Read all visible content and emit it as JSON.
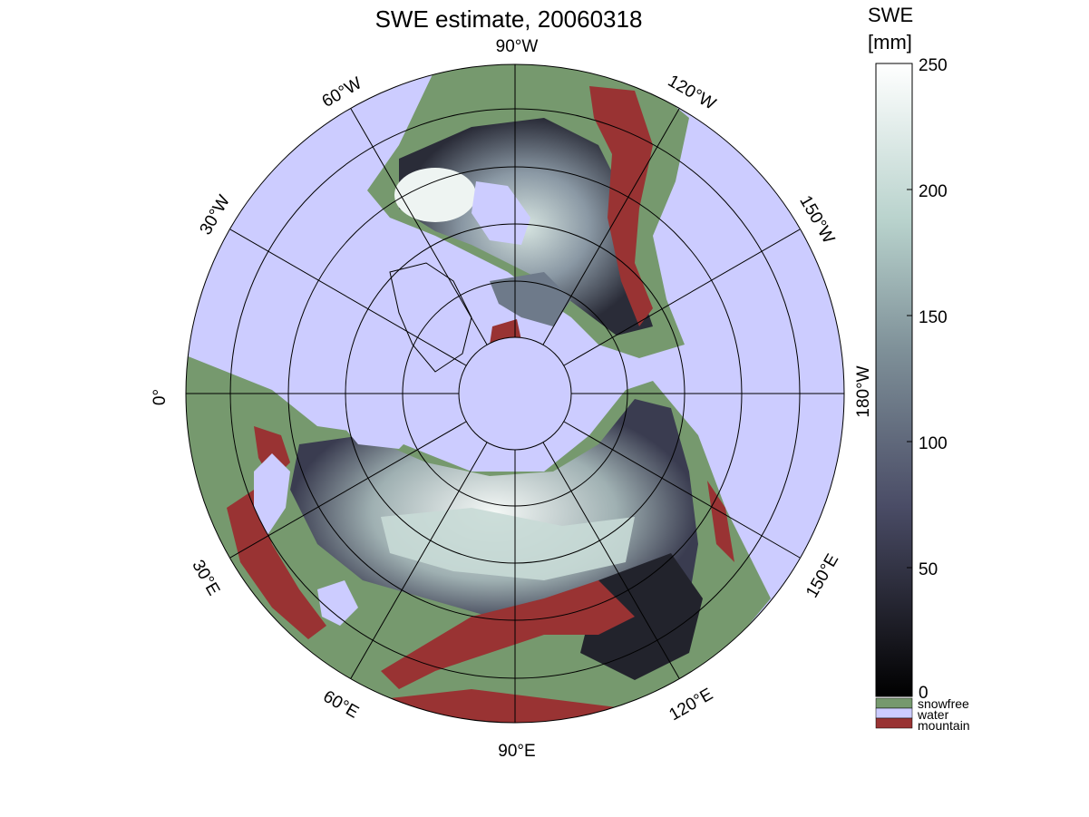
{
  "title": "SWE estimate, 20060318",
  "colorbar": {
    "title_line1": "SWE",
    "title_line2": "[mm]",
    "ticks": [
      "250",
      "200",
      "150",
      "100",
      "50",
      "0"
    ],
    "range": [
      0,
      250
    ],
    "categories": [
      {
        "label": "snowfree",
        "color": "#76996e"
      },
      {
        "label": "water",
        "color": "#ccccff"
      },
      {
        "label": "mountain",
        "color": "#993333"
      }
    ]
  },
  "map": {
    "projection": "polar stereographic, North Pole",
    "meridian_labels": {
      "m90W": "90°W",
      "m60W": "60°W",
      "m120W": "120°W",
      "m30W": "30°W",
      "m150W": "150°W",
      "m0": "0°",
      "m180W": "180°W",
      "m30E": "30°E",
      "m150E": "150°E",
      "m60E": "60°E",
      "m120E": "120°E",
      "m90E": "90°E"
    },
    "colors": {
      "water": "#ccccff",
      "snowfree": "#76996e",
      "mountain": "#993333",
      "deep_snow": "#eef4f2",
      "mid_snow": "#6e7a8a",
      "low_snow": "#20222a"
    }
  }
}
